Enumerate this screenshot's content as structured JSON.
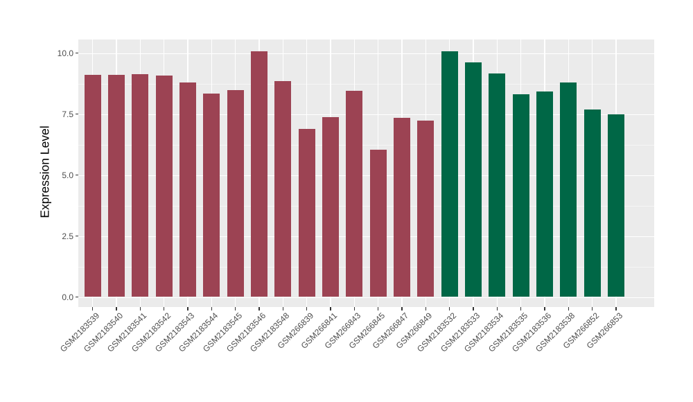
{
  "figure": {
    "background": "#ffffff",
    "panel_background": "#EBEBEB",
    "gridline_major_color": "#FFFFFF",
    "gridline_minor_color": "#F5F5F5",
    "tick_mark_color": "#333333",
    "tick_label_color": "#4D4D4D"
  },
  "chart_data": {
    "type": "bar",
    "title": "",
    "xlabel": "",
    "ylabel": "Expression Level",
    "ylim": [
      0,
      10.55
    ],
    "grid": "on",
    "legend": "none",
    "yticks": [
      0.0,
      2.5,
      5.0,
      7.5,
      10.0
    ],
    "ytick_labels": [
      "0.0",
      "2.5",
      "5.0",
      "7.5",
      "10.0"
    ],
    "minor_yticks": [
      1.25,
      3.75,
      6.25,
      8.75
    ],
    "categories": [
      "GSM2183539",
      "GSM2183540",
      "GSM2183541",
      "GSM2183542",
      "GSM2183543",
      "GSM2183544",
      "GSM2183545",
      "GSM2183546",
      "GSM2183548",
      "GSM266839",
      "GSM266841",
      "GSM266843",
      "GSM266845",
      "GSM266847",
      "GSM266849",
      "GSM2183532",
      "GSM2183533",
      "GSM2183534",
      "GSM2183535",
      "GSM2183536",
      "GSM2183538",
      "GSM266852",
      "GSM266853"
    ],
    "series": [
      {
        "name": "Expression Level",
        "values": [
          9.1,
          9.1,
          9.13,
          9.08,
          8.79,
          8.35,
          8.49,
          10.06,
          8.86,
          6.9,
          7.38,
          8.45,
          6.03,
          7.35,
          7.24,
          10.08,
          9.63,
          9.17,
          8.32,
          8.41,
          8.8,
          7.69,
          7.49
        ]
      }
    ],
    "bar_groups": [
      "maroon",
      "maroon",
      "maroon",
      "maroon",
      "maroon",
      "maroon",
      "maroon",
      "maroon",
      "maroon",
      "maroon",
      "maroon",
      "maroon",
      "maroon",
      "maroon",
      "maroon",
      "green",
      "green",
      "green",
      "green",
      "green",
      "green",
      "green",
      "green"
    ],
    "group_colors": {
      "maroon": "#9C4353",
      "green": "#006746"
    }
  }
}
